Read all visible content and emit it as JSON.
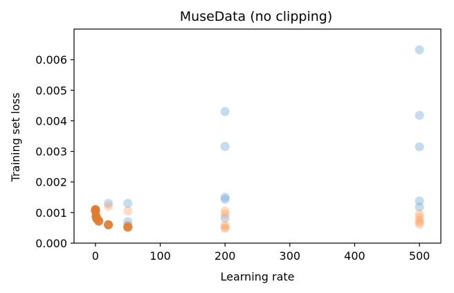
{
  "chart_data": {
    "type": "scatter",
    "title": "MuseData (no clipping)",
    "xlabel": "Learning rate",
    "ylabel": "Training set loss",
    "xlim": [
      -33,
      533
    ],
    "ylim": [
      0,
      0.007
    ],
    "xticks": [
      0,
      100,
      200,
      300,
      400,
      500
    ],
    "xtick_labels": [
      "0",
      "100",
      "200",
      "300",
      "400",
      "500"
    ],
    "yticks": [
      0.0,
      0.001,
      0.002,
      0.003,
      0.004,
      0.005,
      0.006
    ],
    "ytick_labels": [
      "0.000",
      "0.001",
      "0.002",
      "0.003",
      "0.004",
      "0.005",
      "0.006"
    ],
    "grid": false,
    "legend": null,
    "series": [
      {
        "color": "#7fb0d9",
        "alpha": 0.45,
        "points": [
          {
            "x": 0,
            "y": 0.00108
          },
          {
            "x": 1,
            "y": 0.00085
          },
          {
            "x": 5,
            "y": 0.00075
          },
          {
            "x": 20,
            "y": 0.0013
          },
          {
            "x": 20,
            "y": 0.0006
          },
          {
            "x": 50,
            "y": 0.0013
          },
          {
            "x": 50,
            "y": 0.0007
          },
          {
            "x": 50,
            "y": 0.00058
          },
          {
            "x": 200,
            "y": 0.0043
          },
          {
            "x": 200,
            "y": 0.00316
          },
          {
            "x": 200,
            "y": 0.0015
          },
          {
            "x": 200,
            "y": 0.00143
          },
          {
            "x": 200,
            "y": 0.00082
          },
          {
            "x": 500,
            "y": 0.00632
          },
          {
            "x": 500,
            "y": 0.00418
          },
          {
            "x": 500,
            "y": 0.00315
          },
          {
            "x": 500,
            "y": 0.00138
          },
          {
            "x": 500,
            "y": 0.00118
          }
        ]
      },
      {
        "color": "#ff9f5a",
        "alpha": 0.35,
        "points": [
          {
            "x": 20,
            "y": 0.0012
          },
          {
            "x": 50,
            "y": 0.00105
          },
          {
            "x": 50,
            "y": 0.00055
          },
          {
            "x": 200,
            "y": 0.00105
          },
          {
            "x": 200,
            "y": 0.00095
          },
          {
            "x": 200,
            "y": 0.00058
          },
          {
            "x": 200,
            "y": 0.00052
          },
          {
            "x": 200,
            "y": 0.00048
          },
          {
            "x": 500,
            "y": 0.00095
          },
          {
            "x": 500,
            "y": 0.00085
          },
          {
            "x": 500,
            "y": 0.00075
          },
          {
            "x": 500,
            "y": 0.00068
          },
          {
            "x": 500,
            "y": 0.00062
          }
        ]
      },
      {
        "color": "#e07b2e",
        "alpha": 0.9,
        "points": [
          {
            "x": 0,
            "y": 0.0011
          },
          {
            "x": 0,
            "y": 0.00105
          },
          {
            "x": 1,
            "y": 0.00088
          },
          {
            "x": 2,
            "y": 0.0008
          },
          {
            "x": 5,
            "y": 0.00072
          },
          {
            "x": 20,
            "y": 0.0006
          },
          {
            "x": 50,
            "y": 0.00052
          }
        ]
      }
    ]
  }
}
